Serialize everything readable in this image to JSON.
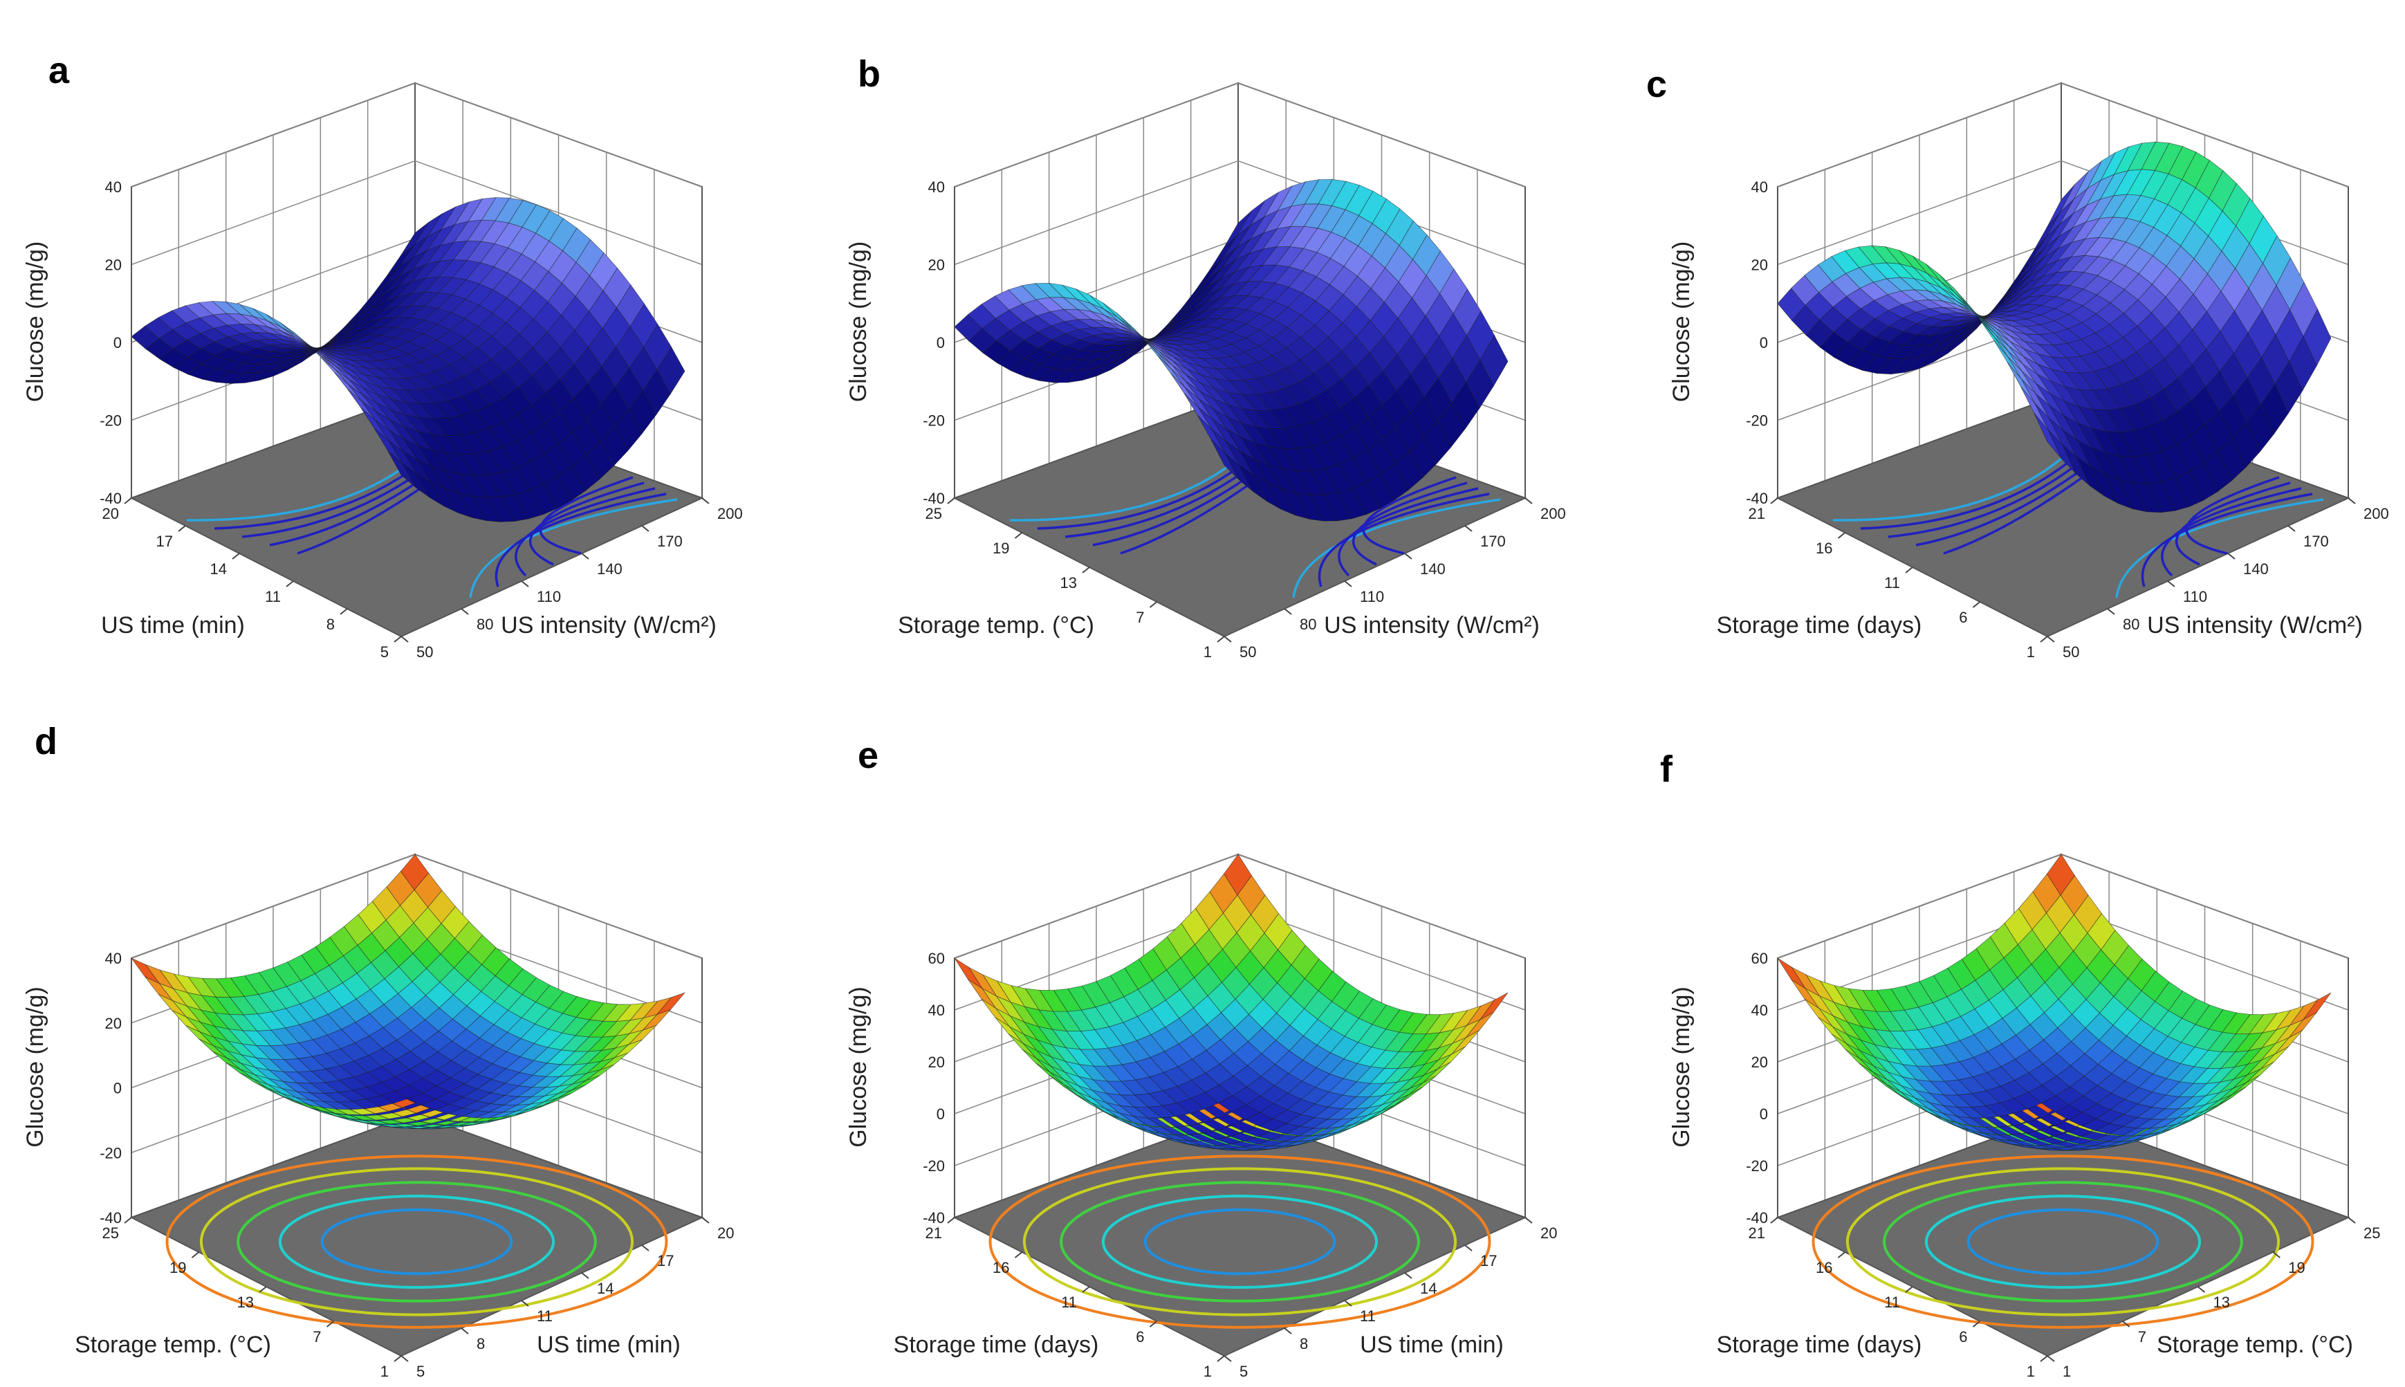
{
  "chart_data": [
    {
      "type": "surface3d",
      "panel": "a",
      "zlabel": "Glucose (mg/g)",
      "zlim": [
        -40,
        40
      ],
      "z_ticks": [
        "-40",
        "-20",
        "0",
        "20",
        "40"
      ],
      "xlabel": "US intensity (W/cm²)",
      "x_ticks": [
        "50",
        "80",
        "110",
        "140",
        "170",
        "200"
      ],
      "ylabel": "US time (min)",
      "y_ticks": [
        "5",
        "8",
        "11",
        "14",
        "17",
        "20"
      ],
      "surface_shape": "saddle",
      "surface_value_range": [
        -22,
        25
      ]
    },
    {
      "type": "surface3d",
      "panel": "b",
      "zlabel": "Glucose (mg/g)",
      "zlim": [
        -40,
        40
      ],
      "z_ticks": [
        "-40",
        "-20",
        "0",
        "20",
        "40"
      ],
      "xlabel": "US intensity (W/cm²)",
      "x_ticks": [
        "50",
        "80",
        "110",
        "140",
        "170",
        "200"
      ],
      "ylabel": "Storage temp. (°C)",
      "y_ticks": [
        "1",
        "7",
        "13",
        "19",
        "25"
      ],
      "surface_shape": "saddle",
      "surface_value_range": [
        -22,
        30
      ]
    },
    {
      "type": "surface3d",
      "panel": "c",
      "zlabel": "Glucose (mg/g)",
      "zlim": [
        -40,
        40
      ],
      "z_ticks": [
        "-40",
        "-20",
        "0",
        "20",
        "40"
      ],
      "xlabel": "US intensity (W/cm²)",
      "x_ticks": [
        "50",
        "80",
        "110",
        "140",
        "170",
        "200"
      ],
      "ylabel": "Storage time (days)",
      "y_ticks": [
        "1",
        "6",
        "11",
        "16",
        "21"
      ],
      "surface_shape": "saddle",
      "surface_value_range": [
        -20,
        40
      ]
    },
    {
      "type": "surface3d",
      "panel": "d",
      "zlabel": "Glucose (mg/g)",
      "zlim": [
        -40,
        40
      ],
      "z_ticks": [
        "-40",
        "-20",
        "0",
        "20",
        "40"
      ],
      "xlabel": "US time (min)",
      "x_ticks": [
        "5",
        "8",
        "11",
        "14",
        "17",
        "20"
      ],
      "ylabel": "Storage temp. (°C)",
      "y_ticks": [
        "1",
        "7",
        "13",
        "19",
        "25"
      ],
      "surface_shape": "bowl",
      "surface_value_range": [
        2,
        40
      ]
    },
    {
      "type": "surface3d",
      "panel": "e",
      "zlabel": "Glucose (mg/g)",
      "zlim": [
        -40,
        60
      ],
      "z_ticks": [
        "-40",
        "-20",
        "0",
        "20",
        "40",
        "60"
      ],
      "xlabel": "US time (min)",
      "x_ticks": [
        "5",
        "8",
        "11",
        "14",
        "17",
        "20"
      ],
      "ylabel": "Storage time (days)",
      "y_ticks": [
        "1",
        "6",
        "11",
        "16",
        "21"
      ],
      "surface_shape": "bowl",
      "surface_value_range": [
        2,
        60
      ]
    },
    {
      "type": "surface3d",
      "panel": "f",
      "zlabel": "Glucose (mg/g)",
      "zlim": [
        -40,
        60
      ],
      "z_ticks": [
        "-40",
        "-20",
        "0",
        "20",
        "40",
        "60"
      ],
      "xlabel": "Storage temp. (°C)",
      "x_ticks": [
        "1",
        "7",
        "13",
        "19",
        "25"
      ],
      "ylabel": "Storage time (days)",
      "y_ticks": [
        "1",
        "6",
        "11",
        "16",
        "21"
      ],
      "surface_shape": "bowl",
      "surface_value_range": [
        2,
        60
      ]
    }
  ],
  "colors": {
    "saddle_low": "#0a0a7a",
    "saddle_mid": "#7b7bf0",
    "saddle_high": "#22e0e0",
    "floor": "#6b6b6b",
    "box_line": "#555555",
    "mesh_line": "#1a1a1a"
  }
}
